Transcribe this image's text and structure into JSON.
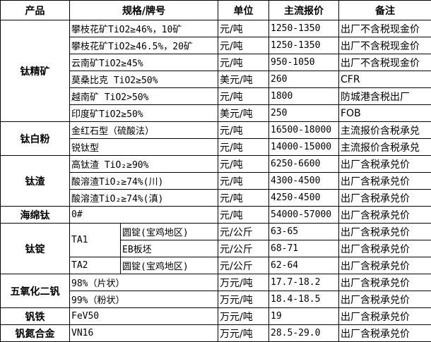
{
  "headers": {
    "product": "产品",
    "spec": "规格/牌号",
    "unit": "单位",
    "price": "主流报价",
    "note": "备注"
  },
  "groups": [
    {
      "product": "钛精矿",
      "items": [
        {
          "spec": "攀枝花矿TiO2≥46%，10矿",
          "unit": "元/吨",
          "price": "1250-1350",
          "note": "出厂不含税现金价"
        },
        {
          "spec": "攀枝花矿TiO2≥46.5%，20矿",
          "unit": "元/吨",
          "price": "1250-1350",
          "note": "出厂不含税现金价"
        },
        {
          "spec": "云南矿TiO2≥45%",
          "unit": "元/吨",
          "price": "950-1050",
          "note": "出厂不含税现金价"
        },
        {
          "spec": "莫桑比克 TiO2≥50%",
          "unit": "美元/吨",
          "price": "260",
          "note": "CFR"
        },
        {
          "spec": "越南矿 TiO2>50%",
          "unit": "元/吨",
          "price": "1800",
          "note": "防城港含税出厂"
        },
        {
          "spec": "印度矿TiO2≥50%",
          "unit": "美元/吨",
          "price": "250",
          "note": "FOB"
        }
      ]
    },
    {
      "product": "钛白粉",
      "items": [
        {
          "spec": "金红石型（硫酸法）",
          "unit": "元/吨",
          "price": "16500-18000",
          "note": "主流报价含税承兑"
        },
        {
          "spec": "锐钛型",
          "unit": "元/吨",
          "price": "14000-15000",
          "note": "主流报价含税承兑"
        }
      ]
    },
    {
      "product": "钛渣",
      "items": [
        {
          "spec": "高钛渣 TiO₂≥90%",
          "unit": "元/吨",
          "price": "6250-6600",
          "note": "出厂含税承兑价"
        },
        {
          "spec": "酸溶渣TiO₂≥74%(川)",
          "unit": "元/吨",
          "price": "4300-4500",
          "note": "出厂含税承兑价"
        },
        {
          "spec": "酸溶渣TiO₂≥74%(滇)",
          "unit": "元/吨",
          "price": "4250-4500",
          "note": "出厂含税承兑价"
        }
      ]
    },
    {
      "product": "海绵钛",
      "items": [
        {
          "spec": "0#",
          "unit": "元/吨",
          "price": "54000-57000",
          "note": "出厂含税承兑价"
        }
      ]
    },
    {
      "product": "钛锭",
      "subgroups": [
        {
          "grade": "TA1",
          "items": [
            {
              "spec": "圆锭(宝鸡地区)",
              "unit": "元/公斤",
              "price": "63-65",
              "note": "出厂含税承兑价"
            },
            {
              "spec": "EB板坯",
              "unit": "元/公斤",
              "price": "68-71",
              "note": "出厂含税承兑价"
            }
          ]
        },
        {
          "grade": "TA2",
          "items": [
            {
              "spec": "圆锭(宝鸡地区)",
              "unit": "元/公斤",
              "price": "62-64",
              "note": "出厂含税承兑价"
            }
          ]
        }
      ]
    },
    {
      "product": "五氧化二钒",
      "items": [
        {
          "spec": "98%（片状）",
          "unit": "万元/吨",
          "price": "17.7-18.2",
          "note": "出厂含税承兑价"
        },
        {
          "spec": "99%（粉状）",
          "unit": "万元/吨",
          "price": "18.4-18.5",
          "note": "出厂含税承兑价"
        }
      ]
    },
    {
      "product": "钒铁",
      "items": [
        {
          "spec": "FeV50",
          "unit": "万元/吨",
          "price": "19",
          "note": "出厂含税承兑价"
        }
      ]
    },
    {
      "product": "钒氮合金",
      "items": [
        {
          "spec": "VN16",
          "unit": "万元/吨",
          "price": "28.5-29.0",
          "note": "出厂含税承兑价"
        }
      ]
    }
  ]
}
